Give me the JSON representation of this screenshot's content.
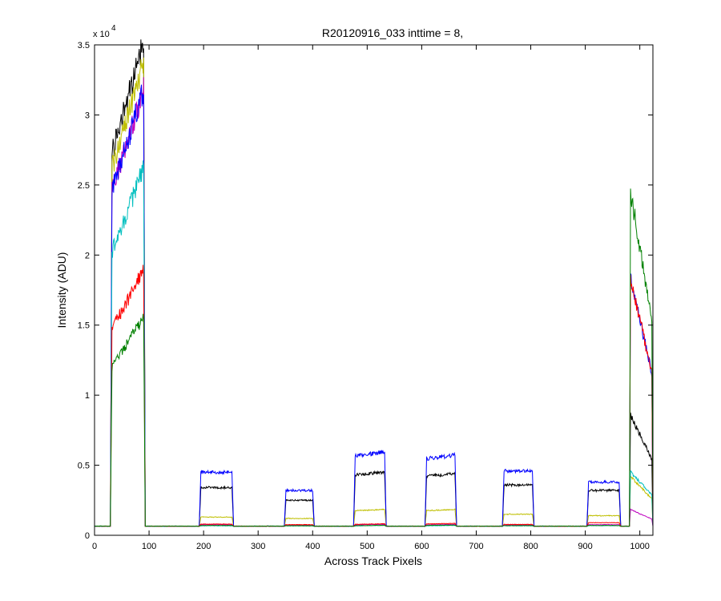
{
  "chart_data": {
    "type": "line",
    "title": "R20120916_033 inttime = 8,",
    "xlabel": "Across Track Pixels",
    "ylabel": "Intensity (ADU)",
    "y_multiplier_label": "x 10",
    "y_multiplier_exponent": "4",
    "xlim": [
      0,
      1024
    ],
    "ylim": [
      0,
      35000
    ],
    "x_ticks": [
      0,
      100,
      200,
      300,
      400,
      500,
      600,
      700,
      800,
      900,
      1000
    ],
    "x_tick_labels": [
      "0",
      "100",
      "200",
      "300",
      "400",
      "500",
      "600",
      "700",
      "800",
      "900",
      "1000"
    ],
    "y_ticks": [
      0,
      5000,
      10000,
      15000,
      20000,
      25000,
      30000,
      35000
    ],
    "y_tick_labels": [
      "0",
      "0.5",
      "1",
      "1.5",
      "2",
      "2.5",
      "3",
      "3.5"
    ],
    "grid": false,
    "baseline": 650,
    "noise_fraction": 0.03,
    "blocks": [
      {
        "start": 29,
        "end": 93,
        "edge": 3,
        "slope": 0.28
      },
      {
        "start": 192,
        "end": 255,
        "edge": 3,
        "slope": 0.0
      },
      {
        "start": 348,
        "end": 403,
        "edge": 3,
        "slope": 0.0
      },
      {
        "start": 475,
        "end": 535,
        "edge": 3,
        "slope": 0.05
      },
      {
        "start": 606,
        "end": 664,
        "edge": 3,
        "slope": 0.05
      },
      {
        "start": 748,
        "end": 806,
        "edge": 3,
        "slope": 0.0
      },
      {
        "start": 903,
        "end": 965,
        "edge": 3,
        "slope": 0.0
      },
      {
        "start": 981,
        "end": 1024,
        "edge": 2,
        "slope": -0.5
      }
    ],
    "series": [
      {
        "color": "#000000",
        "levels": [
          31200,
          3400,
          2500,
          4400,
          4300,
          3600,
          3200,
          7000
        ]
      },
      {
        "color": "#bfbf00",
        "levels": [
          30000,
          1300,
          1200,
          1800,
          1800,
          1500,
          1400,
          3400
        ]
      },
      {
        "color": "#bf00bf",
        "levels": [
          28200,
          750,
          720,
          760,
          760,
          740,
          760,
          1500
        ]
      },
      {
        "color": "#0000ff",
        "levels": [
          28200,
          4500,
          3200,
          5800,
          5600,
          4600,
          3800,
          15000
        ]
      },
      {
        "color": "#00bfbf",
        "levels": [
          23200,
          680,
          670,
          690,
          690,
          680,
          690,
          3700
        ]
      },
      {
        "color": "#ff0000",
        "levels": [
          16800,
          800,
          760,
          800,
          830,
          780,
          900,
          15000
        ]
      },
      {
        "color": "#008000",
        "levels": [
          13800,
          700,
          680,
          700,
          720,
          690,
          700,
          20000
        ]
      }
    ]
  }
}
